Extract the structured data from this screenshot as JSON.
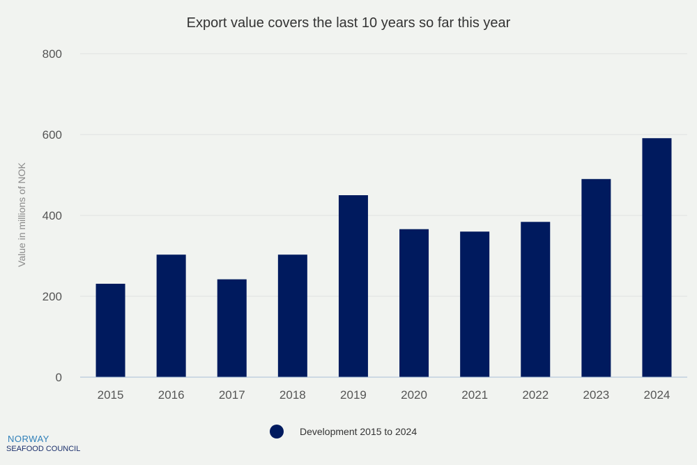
{
  "chart_data": {
    "type": "bar",
    "title": "Export value covers the last 10 years so far this year",
    "xlabel": "",
    "ylabel": "Value in millions of NOK",
    "categories": [
      "2015",
      "2016",
      "2017",
      "2018",
      "2019",
      "2020",
      "2021",
      "2022",
      "2023",
      "2024"
    ],
    "series": [
      {
        "name": "Development 2015 to 2024",
        "values": [
          231,
          303,
          242,
          303,
          450,
          366,
          360,
          384,
          490,
          591
        ]
      }
    ],
    "ylim": [
      0,
      800
    ],
    "yticks": [
      "0",
      "200",
      "400",
      "600",
      "800"
    ],
    "grid": true,
    "legend_position": "bottom-center",
    "colors": {
      "bar": "#001a5e",
      "background": "#f1f3f0",
      "grid": "#dfe2df",
      "axis": "#a9bdd6"
    }
  },
  "logo": {
    "line1": "NORWAY",
    "line2": "SEAFOOD COUNCIL"
  }
}
